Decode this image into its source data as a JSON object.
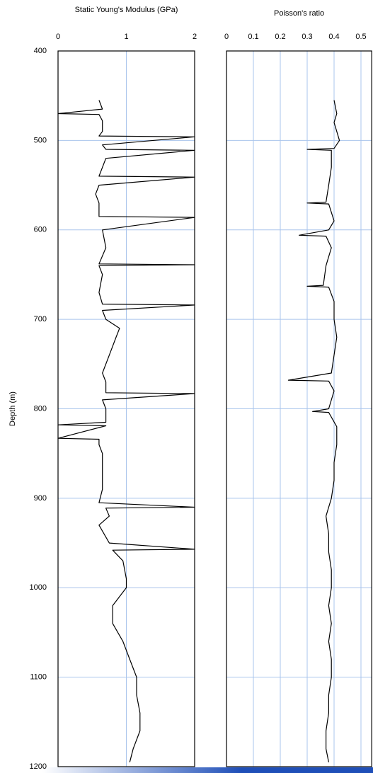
{
  "chart_data": [
    {
      "type": "line",
      "title": "Static Young's Modulus (GPa)",
      "ylabel": "Depth (m)",
      "xlim": [
        0,
        2
      ],
      "xticks": [
        0,
        1,
        2
      ],
      "ylim": [
        400,
        1200
      ],
      "yticks": [
        400,
        500,
        600,
        700,
        800,
        900,
        1000,
        1100,
        1200
      ],
      "y_inverted": true,
      "grid": true,
      "grid_color": "#a9c4ec",
      "series": [
        {
          "color": "#000000",
          "depth": [
            455,
            465,
            470,
            471,
            478,
            490,
            495,
            496,
            505,
            510,
            511,
            520,
            540,
            541,
            550,
            560,
            570,
            585,
            586,
            600,
            620,
            638,
            639,
            640,
            650,
            670,
            683,
            684,
            690,
            700,
            710,
            720,
            740,
            760,
            770,
            782,
            783,
            790,
            800,
            815,
            818,
            819,
            833,
            834,
            840,
            850,
            870,
            890,
            905,
            910,
            911,
            920,
            930,
            950,
            957,
            958,
            970,
            990,
            1000,
            1020,
            1040,
            1060,
            1080,
            1100,
            1120,
            1140,
            1160,
            1180,
            1195
          ],
          "values": [
            0.6,
            0.65,
            0.0,
            0.6,
            0.65,
            0.65,
            0.6,
            2.0,
            0.65,
            0.7,
            2.0,
            0.7,
            0.6,
            2.0,
            0.6,
            0.55,
            0.6,
            0.6,
            2.0,
            0.65,
            0.7,
            0.6,
            2.0,
            0.6,
            0.65,
            0.6,
            0.65,
            2.0,
            0.65,
            0.7,
            0.9,
            0.85,
            0.75,
            0.65,
            0.7,
            0.7,
            2.0,
            0.65,
            0.7,
            0.7,
            0.0,
            0.7,
            0.0,
            0.6,
            0.6,
            0.65,
            0.65,
            0.65,
            0.6,
            2.0,
            0.7,
            0.75,
            0.6,
            0.75,
            2.0,
            0.8,
            0.95,
            1.0,
            1.0,
            0.8,
            0.8,
            0.95,
            1.05,
            1.15,
            1.15,
            1.2,
            1.2,
            1.1,
            1.05
          ]
        }
      ]
    },
    {
      "type": "line",
      "title": "Poisson's ratio",
      "xlim": [
        0,
        0.54
      ],
      "xticks": [
        0,
        0.1,
        0.2,
        0.3,
        0.4,
        0.5
      ],
      "ylim": [
        400,
        1200
      ],
      "yticks": [
        400,
        500,
        600,
        700,
        800,
        900,
        1000,
        1100,
        1200
      ],
      "y_inverted": true,
      "grid": true,
      "grid_color": "#a9c4ec",
      "series": [
        {
          "color": "#000000",
          "depth": [
            455,
            470,
            480,
            490,
            500,
            509,
            510,
            511,
            530,
            550,
            569,
            570,
            571,
            590,
            600,
            606,
            607,
            620,
            640,
            662,
            663,
            664,
            680,
            700,
            720,
            740,
            760,
            768,
            769,
            780,
            800,
            803,
            804,
            820,
            840,
            860,
            880,
            900,
            920,
            940,
            960,
            980,
            1000,
            1020,
            1040,
            1060,
            1080,
            1100,
            1120,
            1140,
            1160,
            1180,
            1195
          ],
          "values": [
            0.4,
            0.41,
            0.4,
            0.41,
            0.42,
            0.4,
            0.3,
            0.39,
            0.39,
            0.38,
            0.37,
            0.3,
            0.38,
            0.4,
            0.38,
            0.27,
            0.37,
            0.39,
            0.37,
            0.36,
            0.3,
            0.38,
            0.4,
            0.4,
            0.41,
            0.4,
            0.39,
            0.23,
            0.38,
            0.4,
            0.38,
            0.32,
            0.38,
            0.41,
            0.41,
            0.4,
            0.4,
            0.39,
            0.37,
            0.38,
            0.38,
            0.39,
            0.39,
            0.38,
            0.39,
            0.38,
            0.39,
            0.39,
            0.38,
            0.38,
            0.37,
            0.37,
            0.38
          ]
        }
      ]
    }
  ]
}
